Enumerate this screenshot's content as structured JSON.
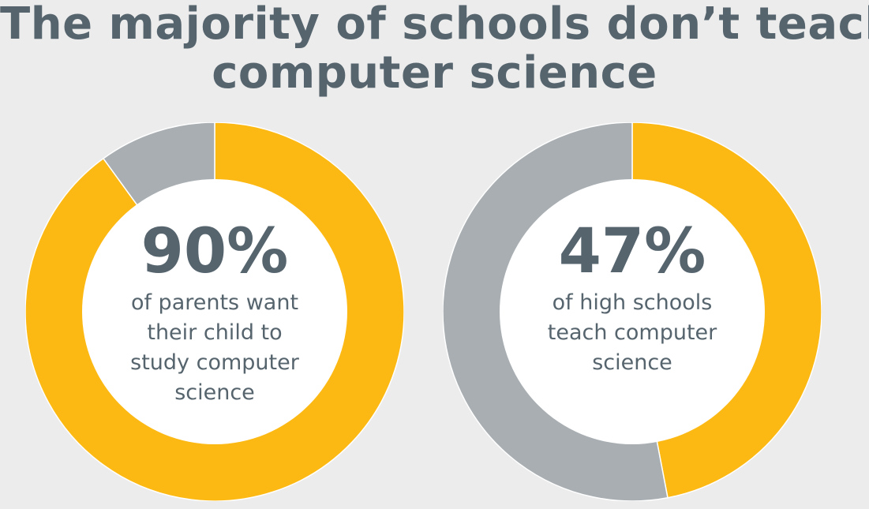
{
  "title": {
    "line1": "The majority of schools don’t teach",
    "line2": "computer science"
  },
  "colors": {
    "accent": "#fdb913",
    "remainder": "#a8aeb2",
    "center": "#ffffff",
    "text": "#56646e",
    "background": "#ececec"
  },
  "chart_data": [
    {
      "type": "pie",
      "title": "",
      "categories": [
        "of parents want their child to study computer science",
        "other"
      ],
      "values": [
        90,
        10
      ],
      "center_value": "90%",
      "center_text": [
        "of parents want",
        "their child to",
        "study computer",
        "science"
      ]
    },
    {
      "type": "pie",
      "title": "",
      "categories": [
        "of high schools teach computer science",
        "other"
      ],
      "values": [
        47,
        53
      ],
      "center_value": "47%",
      "center_text": [
        "of high schools",
        "teach computer",
        "science"
      ]
    }
  ]
}
